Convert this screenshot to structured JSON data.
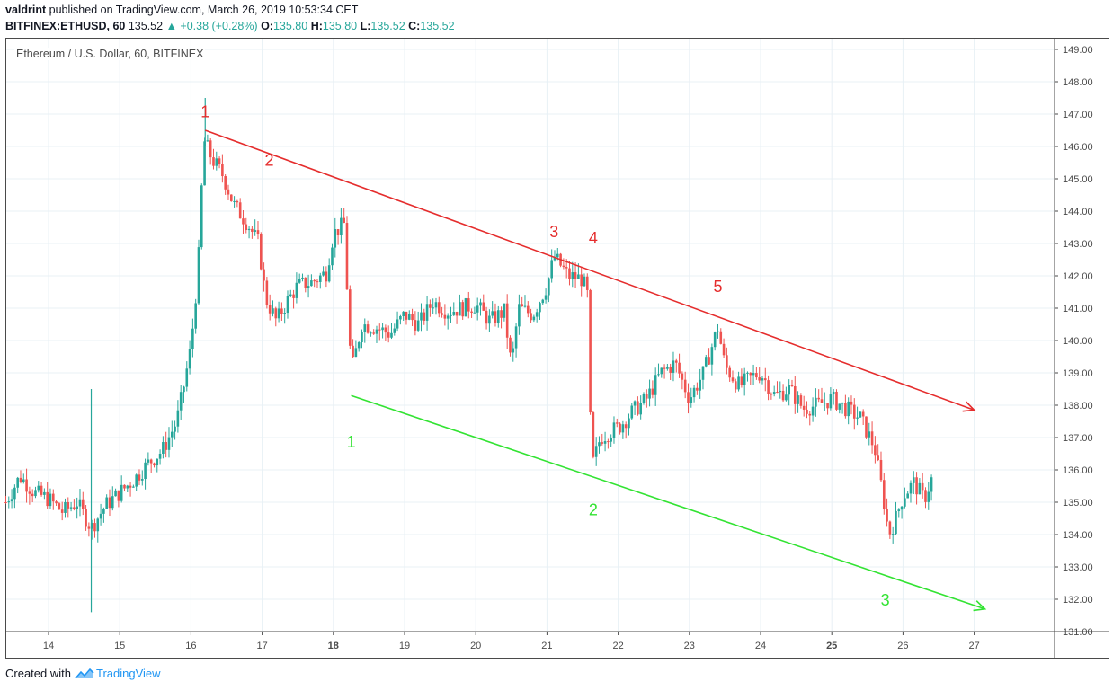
{
  "header": {
    "author": "valdrint",
    "published_text": "published on TradingView.com, March 26, 2019 10:53:34 CET",
    "symbol": "BITFINEX:ETHUSD, 60",
    "last": "135.52",
    "change": "+0.38 (+0.28%)",
    "o_label": "O:",
    "o": "135.80",
    "h_label": "H:",
    "h": "135.80",
    "l_label": "L:",
    "l": "135.52",
    "c_label": "C:",
    "c": "135.52"
  },
  "legend": "Ethereum / U.S. Dollar, 60, BITFINEX",
  "footer": {
    "created_with": "Created with",
    "brand": "TradingView"
  },
  "colors": {
    "up": "#26a69a",
    "down": "#ef5350",
    "grid": "#e8f0f5",
    "resistance": "#e52d2d",
    "support": "#33e333"
  },
  "chart_data": {
    "type": "candlestick",
    "x_ticks": [
      "14",
      "15",
      "16",
      "17",
      "18",
      "19",
      "20",
      "21",
      "22",
      "23",
      "24",
      "25",
      "26",
      "27"
    ],
    "y_ticks": [
      "131.00",
      "132.00",
      "133.00",
      "134.00",
      "135.00",
      "136.00",
      "137.00",
      "138.00",
      "139.00",
      "140.00",
      "141.00",
      "142.00",
      "143.00",
      "144.00",
      "145.00",
      "146.00",
      "147.00",
      "148.00",
      "149.00"
    ],
    "ylim": [
      131,
      149
    ],
    "xlim": [
      13.4,
      27.45
    ],
    "grid": true,
    "close_path": [
      [
        13.4,
        135.0
      ],
      [
        13.6,
        135.8
      ],
      [
        13.8,
        135.3
      ],
      [
        14.0,
        135.1
      ],
      [
        14.2,
        134.7
      ],
      [
        14.4,
        135.0
      ],
      [
        14.6,
        134.2
      ],
      [
        14.8,
        134.9
      ],
      [
        15.0,
        135.3
      ],
      [
        15.2,
        135.7
      ],
      [
        15.4,
        136.2
      ],
      [
        15.6,
        136.6
      ],
      [
        15.8,
        137.5
      ],
      [
        15.9,
        138.6
      ],
      [
        16.0,
        139.8
      ],
      [
        16.1,
        142.2
      ],
      [
        16.18,
        146.2
      ],
      [
        16.3,
        145.6
      ],
      [
        16.45,
        145.1
      ],
      [
        16.6,
        144.2
      ],
      [
        16.8,
        143.6
      ],
      [
        16.95,
        143.0
      ],
      [
        17.05,
        141.3
      ],
      [
        17.2,
        140.6
      ],
      [
        17.35,
        141.2
      ],
      [
        17.5,
        141.7
      ],
      [
        17.7,
        141.8
      ],
      [
        17.9,
        142.1
      ],
      [
        18.0,
        143.3
      ],
      [
        18.15,
        143.6
      ],
      [
        18.25,
        139.0
      ],
      [
        18.4,
        140.5
      ],
      [
        18.6,
        140.4
      ],
      [
        18.8,
        140.2
      ],
      [
        19.0,
        140.8
      ],
      [
        19.2,
        140.5
      ],
      [
        19.4,
        141.2
      ],
      [
        19.6,
        140.9
      ],
      [
        19.8,
        141.0
      ],
      [
        20.0,
        141.1
      ],
      [
        20.2,
        140.6
      ],
      [
        20.4,
        140.9
      ],
      [
        20.5,
        139.2
      ],
      [
        20.6,
        141.0
      ],
      [
        20.8,
        140.8
      ],
      [
        21.0,
        141.7
      ],
      [
        21.1,
        142.6
      ],
      [
        21.3,
        142.0
      ],
      [
        21.5,
        141.9
      ],
      [
        21.58,
        141.3
      ],
      [
        21.62,
        136.0
      ],
      [
        21.75,
        137.0
      ],
      [
        21.9,
        137.2
      ],
      [
        22.0,
        137.3
      ],
      [
        22.2,
        137.8
      ],
      [
        22.4,
        138.2
      ],
      [
        22.6,
        139.0
      ],
      [
        22.8,
        139.3
      ],
      [
        23.0,
        138.2
      ],
      [
        23.2,
        139.0
      ],
      [
        23.4,
        140.4
      ],
      [
        23.5,
        139.2
      ],
      [
        23.7,
        138.6
      ],
      [
        23.9,
        138.9
      ],
      [
        24.0,
        139.0
      ],
      [
        24.2,
        138.3
      ],
      [
        24.4,
        138.5
      ],
      [
        24.6,
        137.9
      ],
      [
        24.8,
        138.0
      ],
      [
        25.0,
        138.2
      ],
      [
        25.2,
        137.9
      ],
      [
        25.4,
        137.6
      ],
      [
        25.6,
        136.7
      ],
      [
        25.72,
        135.2
      ],
      [
        25.8,
        134.0
      ],
      [
        25.9,
        134.5
      ],
      [
        26.0,
        135.2
      ],
      [
        26.15,
        135.6
      ],
      [
        26.3,
        135.1
      ],
      [
        26.4,
        135.7
      ]
    ],
    "spikes": [
      [
        14.6,
        131.6,
        138.5
      ],
      [
        16.2,
        146.0,
        147.5
      ]
    ],
    "resistance": {
      "points": [
        [
          16.2,
          146.5
        ],
        [
          27.0,
          137.85
        ]
      ],
      "labels": [
        "1",
        "2",
        "3",
        "4",
        "5"
      ],
      "label_positions": [
        [
          16.2,
          146.9
        ],
        [
          17.1,
          145.4
        ],
        [
          21.1,
          143.2
        ],
        [
          21.65,
          143.0
        ],
        [
          23.4,
          141.5
        ]
      ]
    },
    "support": {
      "points": [
        [
          18.25,
          138.3
        ],
        [
          27.15,
          131.7
        ]
      ],
      "labels": [
        "1",
        "2",
        "3"
      ],
      "label_positions": [
        [
          18.25,
          136.7
        ],
        [
          21.65,
          134.6
        ],
        [
          25.75,
          131.8
        ]
      ]
    }
  }
}
